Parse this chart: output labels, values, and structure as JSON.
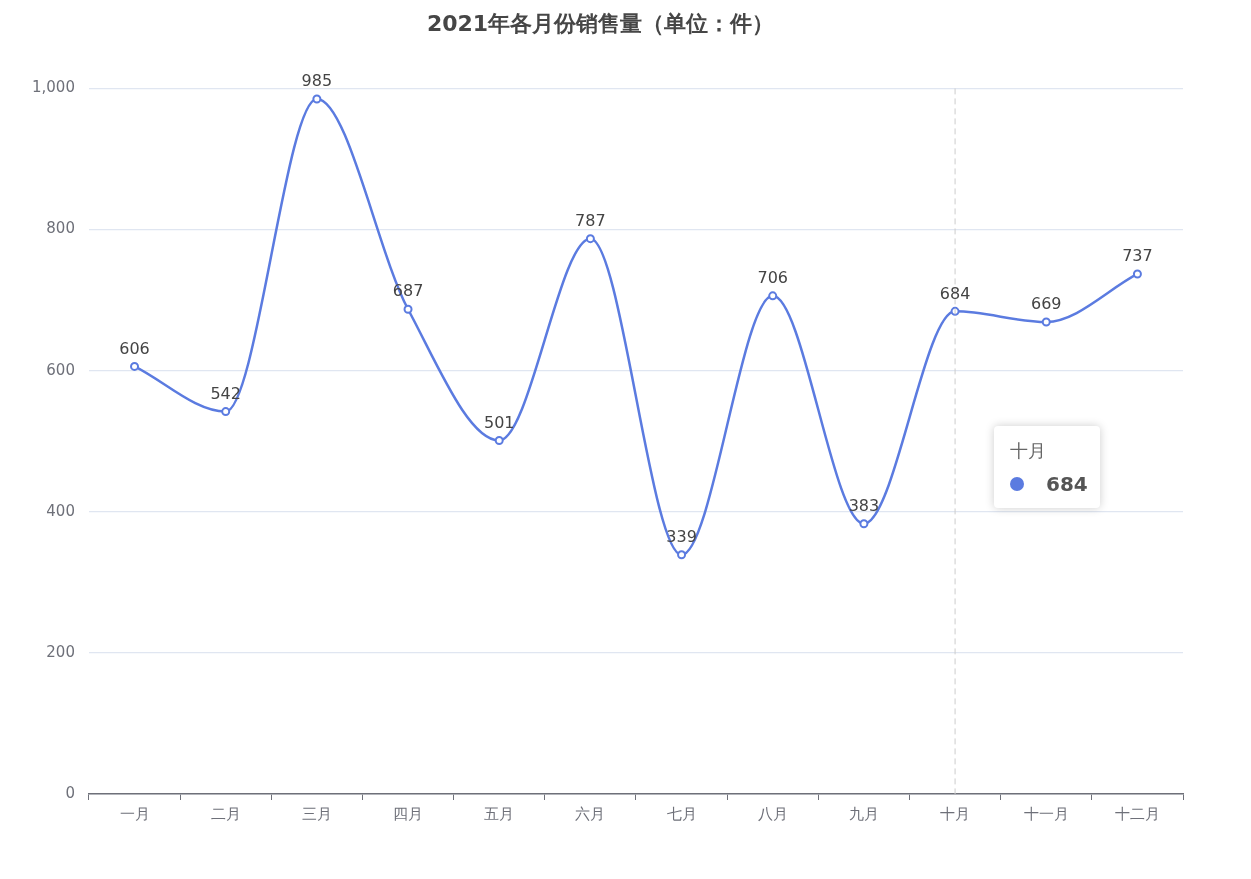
{
  "chart_data": {
    "type": "line",
    "title": "2021年各月份销售量（单位：件）",
    "categories": [
      "一月",
      "二月",
      "三月",
      "四月",
      "五月",
      "六月",
      "七月",
      "八月",
      "九月",
      "十月",
      "十一月",
      "十二月"
    ],
    "series": [
      {
        "color": "#5b7be0",
        "values": [
          606,
          542,
          985,
          687,
          501,
          787,
          339,
          706,
          383,
          684,
          669,
          737
        ]
      }
    ],
    "ylim": [
      0,
      1000
    ],
    "yticks": [
      0,
      200,
      400,
      600,
      800,
      {
        "value": 1000,
        "label": "1,000"
      }
    ],
    "grid": "y",
    "legend": false,
    "marker": "circle",
    "line_style": "solid",
    "data_labels": true,
    "ref_lines": [
      {
        "axis": "x",
        "value": "十月",
        "color": "#cccccc",
        "line_style": "dashed"
      }
    ],
    "annotations": [
      "十月",
      "684"
    ]
  }
}
